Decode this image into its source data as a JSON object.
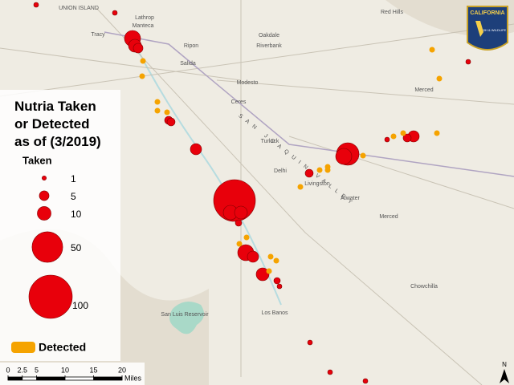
{
  "legend": {
    "title": "Nutria Taken or Detected as of (3/2019)",
    "taken_label": "Taken",
    "sizes": [
      1,
      5,
      10,
      50,
      100
    ],
    "detected_label": "Detected"
  },
  "scale": {
    "ticks": [
      0,
      2.5,
      5,
      10,
      15,
      20
    ],
    "unit": "Miles"
  },
  "logo": {
    "title": "CALIFORNIA",
    "subtitle": "FISH & WILDLIFE"
  },
  "places": [
    "UNION ISLAND",
    "Lathrop",
    "Manteca",
    "Tracy",
    "Ripon",
    "Salida",
    "Oakdale",
    "Riverbank",
    "Modesto",
    "Ceres",
    "Turlock",
    "Delhi",
    "Livingston",
    "Atwater",
    "Merced",
    "Chowchilla",
    "Los Banos",
    "San Luis Reservoir",
    "Red Hills",
    "Merced",
    "SAN JOAQUIN VALLEY"
  ],
  "north": "N"
}
